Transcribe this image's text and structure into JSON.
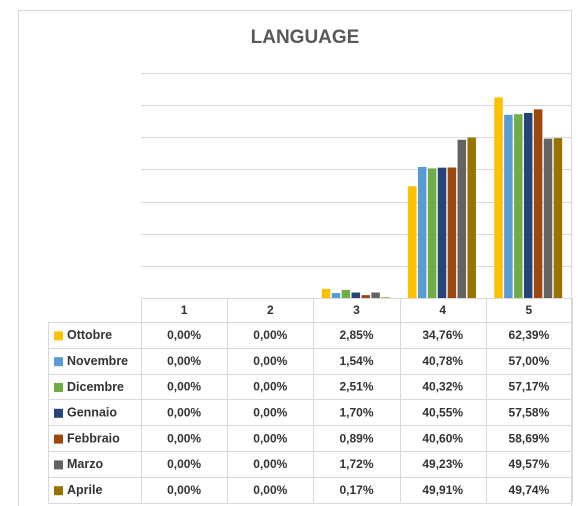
{
  "chart_data": {
    "type": "bar",
    "title": "LANGUAGE",
    "categories": [
      "1",
      "2",
      "3",
      "4",
      "5"
    ],
    "ylim": [
      0,
      70
    ],
    "yticks": [
      0,
      10,
      20,
      30,
      40,
      50,
      60,
      70
    ],
    "grid": true,
    "series": [
      {
        "name": "Ottobre",
        "color": "#ffc000",
        "values": [
          0,
          0,
          2.85,
          34.76,
          62.39
        ],
        "value_labels": [
          "0,00%",
          "0,00%",
          "2,85%",
          "34,76%",
          "62,39%"
        ]
      },
      {
        "name": "Novembre",
        "color": "#5b9bd5",
        "values": [
          0,
          0,
          1.54,
          40.78,
          57.0
        ],
        "value_labels": [
          "0,00%",
          "0,00%",
          "1,54%",
          "40,78%",
          "57,00%"
        ]
      },
      {
        "name": "Dicembre",
        "color": "#70ad47",
        "values": [
          0,
          0,
          2.51,
          40.32,
          57.17
        ],
        "value_labels": [
          "0,00%",
          "0,00%",
          "2,51%",
          "40,32%",
          "57,17%"
        ]
      },
      {
        "name": "Gennaio",
        "color": "#264478",
        "values": [
          0,
          0,
          1.7,
          40.55,
          57.58
        ],
        "value_labels": [
          "0,00%",
          "0,00%",
          "1,70%",
          "40,55%",
          "57,58%"
        ]
      },
      {
        "name": "Febbraio",
        "color": "#9e480e",
        "values": [
          0,
          0,
          0.89,
          40.6,
          58.69
        ],
        "value_labels": [
          "0,00%",
          "0,00%",
          "0,89%",
          "40,60%",
          "58,69%"
        ]
      },
      {
        "name": "Marzo",
        "color": "#636363",
        "values": [
          0,
          0,
          1.72,
          49.23,
          49.57
        ],
        "value_labels": [
          "0,00%",
          "0,00%",
          "1,72%",
          "49,23%",
          "49,57%"
        ]
      },
      {
        "name": "Aprile",
        "color": "#997300",
        "values": [
          0,
          0,
          0.17,
          49.91,
          49.74
        ],
        "value_labels": [
          "0,00%",
          "0,00%",
          "0,17%",
          "49,91%",
          "49,74%"
        ]
      }
    ]
  }
}
